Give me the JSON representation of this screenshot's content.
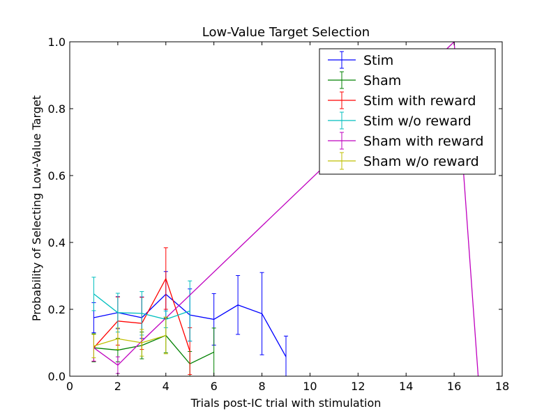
{
  "chart_data": {
    "type": "line",
    "title": "Low-Value Target Selection",
    "xlabel": "Trials post-IC trial with stimulation",
    "ylabel": "Probability of Selecting Low-Value Target",
    "xlim": [
      0,
      18
    ],
    "ylim": [
      0,
      1.0
    ],
    "xticks": [
      0,
      2,
      4,
      6,
      8,
      10,
      12,
      14,
      16,
      18
    ],
    "xtick_labels": [
      "0",
      "2",
      "4",
      "6",
      "8",
      "10",
      "12",
      "14",
      "16",
      "18"
    ],
    "yticks": [
      0,
      0.2,
      0.4,
      0.6,
      0.8,
      1.0
    ],
    "ytick_labels": [
      "0.0",
      "0.2",
      "0.4",
      "0.6",
      "0.8",
      "1.0"
    ],
    "grid": false,
    "legend_position": "top-right",
    "error_bars": true,
    "series": [
      {
        "name": "Stim",
        "color": "#0000ff",
        "x": [
          1,
          2,
          3,
          4,
          5,
          6,
          7,
          8,
          9
        ],
        "y": [
          0.175,
          0.19,
          0.175,
          0.245,
          0.183,
          0.17,
          0.213,
          0.187,
          0.058
        ],
        "err": [
          0.045,
          0.048,
          0.062,
          0.068,
          0.078,
          0.077,
          0.088,
          0.123,
          0.062
        ]
      },
      {
        "name": "Sham",
        "color": "#008000",
        "x": [
          1,
          2,
          3,
          4,
          5,
          6
        ],
        "y": [
          0.085,
          0.078,
          0.092,
          0.122,
          0.037,
          0.072
        ],
        "err": [
          0.042,
          0.035,
          0.04,
          0.052,
          0.037,
          0.072
        ]
      },
      {
        "name": "Stim with reward",
        "color": "#ff0000",
        "x": [
          1,
          2,
          3,
          4,
          5
        ],
        "y": [
          0.085,
          0.165,
          0.158,
          0.292,
          0.075
        ],
        "err": [
          0.04,
          0.072,
          0.078,
          0.092,
          0.07
        ]
      },
      {
        "name": "Stim w/o reward",
        "color": "#00bfbf",
        "x": [
          1,
          2,
          3,
          4,
          5
        ],
        "y": [
          0.246,
          0.19,
          0.188,
          0.17,
          0.195
        ],
        "err": [
          0.05,
          0.058,
          0.065,
          0.025,
          0.09
        ]
      },
      {
        "name": "Sham with reward",
        "color": "#bf00bf",
        "x": [
          1,
          2,
          3,
          16,
          17
        ],
        "y": [
          0.085,
          0.033,
          0.105,
          1.0,
          0.0
        ],
        "err": [
          0.04,
          0.025,
          0.0,
          0.0,
          0.0
        ]
      },
      {
        "name": "Sham w/o reward",
        "color": "#bfbf00",
        "x": [
          1,
          2,
          3,
          4
        ],
        "y": [
          0.09,
          0.112,
          0.1,
          0.122
        ],
        "err": [
          0.035,
          0.032,
          0.04,
          0.055
        ]
      }
    ]
  }
}
